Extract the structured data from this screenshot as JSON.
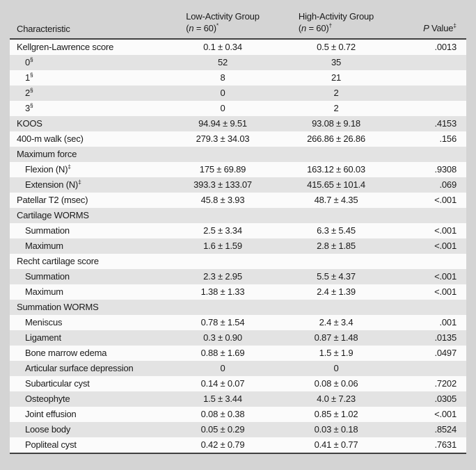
{
  "colors": {
    "page_background": "#d4d4d4",
    "row_white": "#fbfbfb",
    "row_stripe": "#e3e3e3",
    "rule": "#3f3f3f",
    "text": "#1a1a1a"
  },
  "table": {
    "header": {
      "characteristic": "Characteristic",
      "low": {
        "line1": "Low-Activity Group",
        "paren": "(",
        "n": "n",
        "rest": " = 60)",
        "sup": "*"
      },
      "high": {
        "line1": "High-Activity Group",
        "paren": "(",
        "n": "n",
        "rest": " = 60)",
        "sup": "†"
      },
      "p": {
        "italic": "P",
        "rest": " Value",
        "sup": "‡"
      }
    },
    "rows": [
      {
        "label": "Kellgren-Lawrence score",
        "sup": "",
        "indent": false,
        "low": "0.1 ± 0.34",
        "high": "0.5 ± 0.72",
        "p": ".0013"
      },
      {
        "label": "0",
        "sup": "§",
        "indent": true,
        "low": "52",
        "high": "35",
        "p": ""
      },
      {
        "label": "1",
        "sup": "§",
        "indent": true,
        "low": "8",
        "high": "21",
        "p": ""
      },
      {
        "label": "2",
        "sup": "§",
        "indent": true,
        "low": "0",
        "high": "2",
        "p": ""
      },
      {
        "label": "3",
        "sup": "§",
        "indent": true,
        "low": "0",
        "high": "2",
        "p": ""
      },
      {
        "label": "KOOS",
        "sup": "",
        "indent": false,
        "low": "94.94 ± 9.51",
        "high": "93.08 ± 9.18",
        "p": ".4153"
      },
      {
        "label": "400-m walk (sec)",
        "sup": "",
        "indent": false,
        "low": "279.3 ± 34.03",
        "high": "266.86 ± 26.86",
        "p": ".156"
      },
      {
        "label": "Maximum force",
        "sup": "",
        "indent": false,
        "low": "",
        "high": "",
        "p": ""
      },
      {
        "label": "Flexion (N)",
        "sup": "‡",
        "indent": true,
        "low": "175 ± 69.89",
        "high": "163.12 ± 60.03",
        "p": ".9308"
      },
      {
        "label": "Extension (N)",
        "sup": "‡",
        "indent": true,
        "low": "393.3 ± 133.07",
        "high": "415.65 ± 101.4",
        "p": ".069"
      },
      {
        "label": "Patellar T2 (msec)",
        "sup": "",
        "indent": false,
        "low": "45.8 ± 3.93",
        "high": "48.7 ± 4.35",
        "p": "<.001"
      },
      {
        "label": "Cartilage WORMS",
        "sup": "",
        "indent": false,
        "low": "",
        "high": "",
        "p": ""
      },
      {
        "label": "Summation",
        "sup": "",
        "indent": true,
        "low": "2.5 ± 3.34",
        "high": "6.3 ± 5.45",
        "p": "<.001"
      },
      {
        "label": "Maximum",
        "sup": "",
        "indent": true,
        "low": "1.6 ± 1.59",
        "high": "2.8 ± 1.85",
        "p": "<.001"
      },
      {
        "label": "Recht cartilage score",
        "sup": "",
        "indent": false,
        "low": "",
        "high": "",
        "p": ""
      },
      {
        "label": "Summation",
        "sup": "",
        "indent": true,
        "low": "2.3 ± 2.95",
        "high": "5.5 ± 4.37",
        "p": "<.001"
      },
      {
        "label": "Maximum",
        "sup": "",
        "indent": true,
        "low": "1.38 ± 1.33",
        "high": "2.4 ± 1.39",
        "p": "<.001"
      },
      {
        "label": "Summation WORMS",
        "sup": "",
        "indent": false,
        "low": "",
        "high": "",
        "p": ""
      },
      {
        "label": "Meniscus",
        "sup": "",
        "indent": true,
        "low": "0.78 ± 1.54",
        "high": "2.4 ± 3.4",
        "p": ".001"
      },
      {
        "label": "Ligament",
        "sup": "",
        "indent": true,
        "low": "0.3 ± 0.90",
        "high": "0.87 ± 1.48",
        "p": ".0135"
      },
      {
        "label": "Bone marrow edema",
        "sup": "",
        "indent": true,
        "low": "0.88 ± 1.69",
        "high": "1.5 ± 1.9",
        "p": ".0497"
      },
      {
        "label": "Articular surface depression",
        "sup": "",
        "indent": true,
        "low": "0",
        "high": "0",
        "p": ""
      },
      {
        "label": "Subarticular cyst",
        "sup": "",
        "indent": true,
        "low": "0.14 ± 0.07",
        "high": "0.08 ± 0.06",
        "p": ".7202"
      },
      {
        "label": "Osteophyte",
        "sup": "",
        "indent": true,
        "low": "1.5 ± 3.44",
        "high": "4.0 ± 7.23",
        "p": ".0305"
      },
      {
        "label": "Joint effusion",
        "sup": "",
        "indent": true,
        "low": "0.08 ± 0.38",
        "high": "0.85 ± 1.02",
        "p": "<.001"
      },
      {
        "label": "Loose body",
        "sup": "",
        "indent": true,
        "low": "0.05 ± 0.29",
        "high": "0.03 ± 0.18",
        "p": ".8524"
      },
      {
        "label": "Popliteal cyst",
        "sup": "",
        "indent": true,
        "low": "0.42 ± 0.79",
        "high": "0.41 ± 0.77",
        "p": ".7631"
      }
    ]
  }
}
